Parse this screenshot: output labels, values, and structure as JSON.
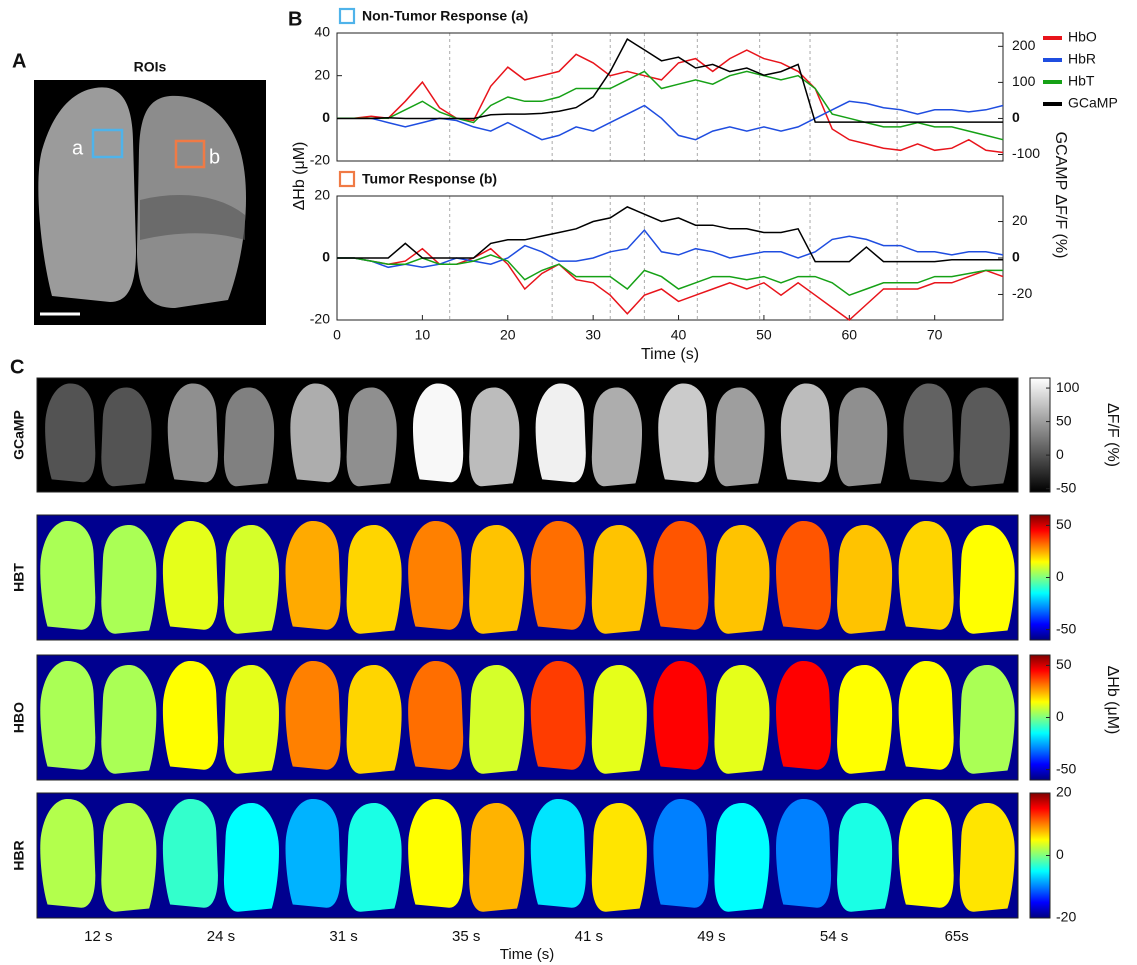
{
  "panels": [
    "A",
    "B",
    "C"
  ],
  "rois": {
    "title": "ROIs",
    "labels": [
      "a",
      "b"
    ]
  },
  "chart_data": [
    {
      "type": "line",
      "title": "Non-Tumor Response (a)",
      "title_box_color": "#4fb3ea",
      "ylabel": "ΔHb (μM)",
      "y2label": "GCAMP  ΔF/F (%)",
      "x": [
        0,
        2,
        4,
        6,
        8,
        10,
        12,
        14,
        16,
        18,
        20,
        22,
        24,
        26,
        28,
        30,
        32,
        34,
        36,
        38,
        40,
        42,
        44,
        46,
        48,
        50,
        52,
        54,
        56,
        58,
        60,
        62,
        64,
        66,
        68,
        70,
        72,
        74,
        76,
        78
      ],
      "xlim": [
        0,
        78
      ],
      "ylim": [
        -20,
        40
      ],
      "yticks": [
        -20,
        0,
        20,
        40
      ],
      "y2lim": [
        -118,
        237
      ],
      "y2ticks": [
        -100,
        0,
        100,
        200
      ],
      "vlines": [
        13.2,
        25.2,
        32,
        36,
        42.2,
        49.5,
        55.4,
        65.6
      ],
      "series": [
        {
          "name": "HbO",
          "color": "#e8141b",
          "values": [
            0,
            0,
            1,
            0,
            8,
            17,
            5,
            0,
            -1,
            15,
            24,
            18,
            20,
            22,
            30,
            26,
            20,
            22,
            20,
            18,
            26,
            28,
            22,
            28,
            32,
            28,
            26,
            22,
            14,
            -5,
            -10,
            -12,
            -14,
            -15,
            -12,
            -15,
            -14,
            -10,
            -15,
            -16
          ]
        },
        {
          "name": "HbR",
          "color": "#1f4de0",
          "values": [
            0,
            0,
            0,
            -2,
            -4,
            -2,
            0,
            -1,
            -4,
            -6,
            -2,
            -6,
            -10,
            -8,
            -4,
            -6,
            -2,
            2,
            6,
            0,
            -8,
            -10,
            -6,
            -4,
            -6,
            -4,
            -6,
            -4,
            0,
            4,
            8,
            7,
            5,
            4,
            2,
            4,
            4,
            3,
            4,
            6
          ]
        },
        {
          "name": "HbT",
          "color": "#16a116",
          "values": [
            0,
            0,
            0,
            0,
            4,
            8,
            3,
            0,
            -2,
            6,
            10,
            8,
            8,
            10,
            14,
            14,
            14,
            18,
            22,
            14,
            16,
            18,
            16,
            20,
            22,
            20,
            18,
            20,
            14,
            2,
            0,
            -2,
            -4,
            -4,
            -2,
            -4,
            -4,
            -6,
            -8,
            -10
          ]
        },
        {
          "name": "GCaMP",
          "color": "#000000",
          "axis": "y2",
          "values": [
            0,
            0,
            0,
            2,
            0,
            0,
            0,
            0,
            0,
            10,
            12,
            12,
            14,
            20,
            30,
            60,
            130,
            220,
            190,
            160,
            170,
            140,
            150,
            130,
            140,
            120,
            130,
            150,
            -10,
            -10,
            -10,
            -10,
            -10,
            -10,
            -10,
            -10,
            -10,
            -10,
            -10,
            -10
          ]
        }
      ]
    },
    {
      "type": "line",
      "title": "Tumor Response (b)",
      "title_box_color": "#f07a45",
      "xlabel": "Time (s)",
      "x": [
        0,
        2,
        4,
        6,
        8,
        10,
        12,
        14,
        16,
        18,
        20,
        22,
        24,
        26,
        28,
        30,
        32,
        34,
        36,
        38,
        40,
        42,
        44,
        46,
        48,
        50,
        52,
        54,
        56,
        58,
        60,
        62,
        64,
        66,
        68,
        70,
        72,
        74,
        76,
        78
      ],
      "xlim": [
        0,
        78
      ],
      "xticks": [
        0,
        10,
        20,
        30,
        40,
        50,
        60,
        70
      ],
      "ylim": [
        -20,
        20
      ],
      "yticks": [
        -20,
        0,
        20
      ],
      "y2lim": [
        -34,
        34
      ],
      "y2ticks": [
        -20,
        0,
        20
      ],
      "vlines": [
        13.2,
        25.2,
        32,
        36,
        42.2,
        49.5,
        55.4,
        65.6
      ],
      "series": [
        {
          "color": "#e8141b",
          "values": [
            0,
            0,
            -1,
            -2,
            -1,
            3,
            -2,
            -2,
            0,
            3,
            -2,
            -10,
            -5,
            -2,
            -7,
            -8,
            -12,
            -18,
            -12,
            -10,
            -14,
            -12,
            -10,
            -8,
            -10,
            -8,
            -12,
            -8,
            -12,
            -16,
            -20,
            -15,
            -10,
            -10,
            -10,
            -8,
            -8,
            -6,
            -4,
            -6
          ]
        },
        {
          "color": "#1f4de0",
          "values": [
            0,
            0,
            -1,
            -3,
            -2,
            -3,
            -2,
            0,
            -1,
            -2,
            0,
            4,
            2,
            -1,
            -1,
            0,
            2,
            3,
            9,
            2,
            1,
            3,
            2,
            0,
            1,
            2,
            2,
            0,
            2,
            6,
            7,
            6,
            4,
            4,
            2,
            2,
            1,
            2,
            2,
            1
          ]
        },
        {
          "color": "#16a116",
          "values": [
            0,
            0,
            -1,
            -2,
            -2,
            0,
            -2,
            -2,
            -1,
            1,
            -1,
            -7,
            -4,
            -2,
            -6,
            -6,
            -6,
            -10,
            -4,
            -6,
            -10,
            -8,
            -6,
            -6,
            -7,
            -6,
            -8,
            -6,
            -6,
            -8,
            -12,
            -10,
            -8,
            -8,
            -8,
            -6,
            -6,
            -5,
            -4,
            -4
          ]
        },
        {
          "color": "#000000",
          "axis": "y2",
          "values": [
            0,
            0,
            0,
            0,
            8,
            0,
            0,
            0,
            0,
            8,
            10,
            10,
            12,
            14,
            16,
            20,
            22,
            28,
            24,
            20,
            22,
            18,
            18,
            16,
            16,
            14,
            14,
            16,
            -2,
            -2,
            -2,
            6,
            -2,
            -2,
            -2,
            -2,
            -1,
            -1,
            -1,
            -1
          ]
        }
      ]
    },
    {
      "type": "heatmap",
      "xlabel": "Time (s)",
      "frame_labels": [
        "12 s",
        "24 s",
        "31 s",
        "35 s",
        "41 s",
        "49 s",
        "54 s",
        "65s"
      ],
      "rows": [
        {
          "name": "GCaMP",
          "colormap": "gray",
          "clim": [
            -55,
            115
          ],
          "cticks": [
            -50,
            0,
            50,
            100
          ],
          "clabel": "ΔF/F (%)",
          "values": [
            [
              0,
              0
            ],
            [
              40,
              30
            ],
            [
              60,
              40
            ],
            [
              110,
              70
            ],
            [
              105,
              60
            ],
            [
              80,
              50
            ],
            [
              70,
              40
            ],
            [
              10,
              5
            ]
          ]
        },
        {
          "name": "HBT",
          "colormap": "jet",
          "clim": [
            -60,
            60
          ],
          "cticks": [
            -50,
            0,
            50
          ],
          "values": [
            [
              5,
              5
            ],
            [
              12,
              10
            ],
            [
              25,
              20
            ],
            [
              30,
              22
            ],
            [
              32,
              22
            ],
            [
              35,
              22
            ],
            [
              35,
              22
            ],
            [
              20,
              15
            ]
          ]
        },
        {
          "name": "HBO",
          "colormap": "jet",
          "clim": [
            -60,
            60
          ],
          "cticks": [
            -50,
            0,
            50
          ],
          "clabel": "ΔHb (μM)",
          "values": [
            [
              5,
              5
            ],
            [
              15,
              12
            ],
            [
              30,
              20
            ],
            [
              32,
              10
            ],
            [
              38,
              12
            ],
            [
              45,
              12
            ],
            [
              45,
              15
            ],
            [
              15,
              5
            ]
          ]
        },
        {
          "name": "HBR",
          "colormap": "jet",
          "clim": [
            -20,
            20
          ],
          "cticks": [
            -20,
            0,
            20
          ],
          "values": [
            [
              2,
              2
            ],
            [
              -3,
              -5
            ],
            [
              -8,
              -4
            ],
            [
              5,
              8
            ],
            [
              -6,
              6
            ],
            [
              -10,
              -5
            ],
            [
              -10,
              -4
            ],
            [
              5,
              6
            ]
          ]
        }
      ]
    }
  ]
}
